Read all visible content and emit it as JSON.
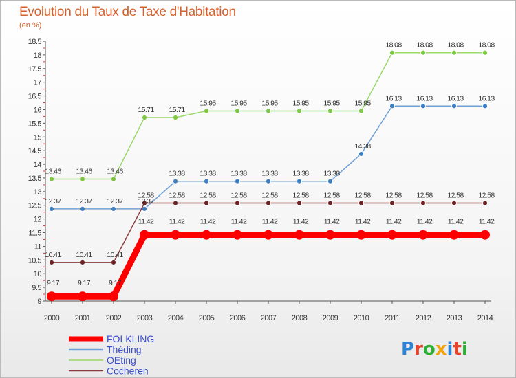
{
  "title": "Evolution du Taux de Taxe d'Habitation",
  "unit": "(en %)",
  "brand": {
    "letters": [
      "P",
      "r",
      "o",
      "x",
      "i",
      "t",
      "i"
    ],
    "colors": [
      "#2b84d6",
      "#e8442d",
      "#2fae36",
      "#f2a20d",
      "#2b84d6",
      "#e8442d",
      "#2fae36"
    ]
  },
  "chart_data": {
    "type": "line",
    "x": [
      "2000",
      "2001",
      "2002",
      "2003",
      "2004",
      "2005",
      "2006",
      "2007",
      "2008",
      "2009",
      "2010",
      "2011",
      "2012",
      "2013",
      "2014"
    ],
    "ylim": [
      9,
      18.5
    ],
    "yticks": [
      "9",
      "9.5",
      "10",
      "10.5",
      "11",
      "11.5",
      "12",
      "12.5",
      "13",
      "13.5",
      "14",
      "14.5",
      "15",
      "15.5",
      "16",
      "16.5",
      "17",
      "17.5",
      "18",
      "18.5"
    ],
    "grid": false,
    "legend_position": "bottom-left",
    "series": [
      {
        "name": "FOLKLING",
        "color": "#ff0000",
        "width": 9,
        "marker": 7,
        "values": [
          9.17,
          9.17,
          9.17,
          11.42,
          11.42,
          11.42,
          11.42,
          11.42,
          11.42,
          11.42,
          11.42,
          11.42,
          11.42,
          11.42,
          11.42
        ],
        "labels": [
          "9.17",
          "9.17",
          "9.17",
          "11.42",
          "11.42",
          "11.42",
          "11.42",
          "11.42",
          "11.42",
          "11.42",
          "11.42",
          "11.42",
          "11.42",
          "11.42",
          "11.42"
        ]
      },
      {
        "name": "Théding",
        "color": "#6fa0d6",
        "marker_color": "#3e7fc1",
        "width": 1.5,
        "marker": 3.5,
        "values": [
          12.37,
          12.37,
          12.37,
          12.37,
          13.38,
          13.38,
          13.38,
          13.38,
          13.38,
          13.38,
          14.38,
          16.13,
          16.13,
          16.13,
          16.13
        ],
        "labels": [
          "12.37",
          "12.37",
          "12.37",
          "12.37",
          "13.38",
          "13.38",
          "13.38",
          "13.38",
          "13.38",
          "13.38",
          "14.38",
          "16.13",
          "16.13",
          "16.13",
          "16.13"
        ]
      },
      {
        "name": "OEting",
        "color": "#9ad86a",
        "marker_color": "#7cc93f",
        "width": 1.5,
        "marker": 3.5,
        "values": [
          13.46,
          13.46,
          13.46,
          15.71,
          15.71,
          15.95,
          15.95,
          15.95,
          15.95,
          15.95,
          15.95,
          18.08,
          18.08,
          18.08,
          18.08
        ],
        "labels": [
          "13.46",
          "13.46",
          "13.46",
          "15.71",
          "15.71",
          "15.95",
          "15.95",
          "15.95",
          "15.95",
          "15.95",
          "15.95",
          "18.08",
          "18.08",
          "18.08",
          "18.08"
        ]
      },
      {
        "name": "Cocheren",
        "color": "#8a3b3b",
        "marker_color": "#6e2424",
        "width": 1.5,
        "marker": 3.5,
        "values": [
          10.41,
          10.41,
          10.41,
          12.58,
          12.58,
          12.58,
          12.58,
          12.58,
          12.58,
          12.58,
          12.58,
          12.58,
          12.58,
          12.58,
          12.58
        ],
        "labels": [
          "10.41",
          "10.41",
          "10.41",
          "12.58",
          "12.58",
          "12.58",
          "12.58",
          "12.58",
          "12.58",
          "12.58",
          "12.58",
          "12.58",
          "12.58",
          "12.58",
          "12.58"
        ]
      }
    ]
  }
}
